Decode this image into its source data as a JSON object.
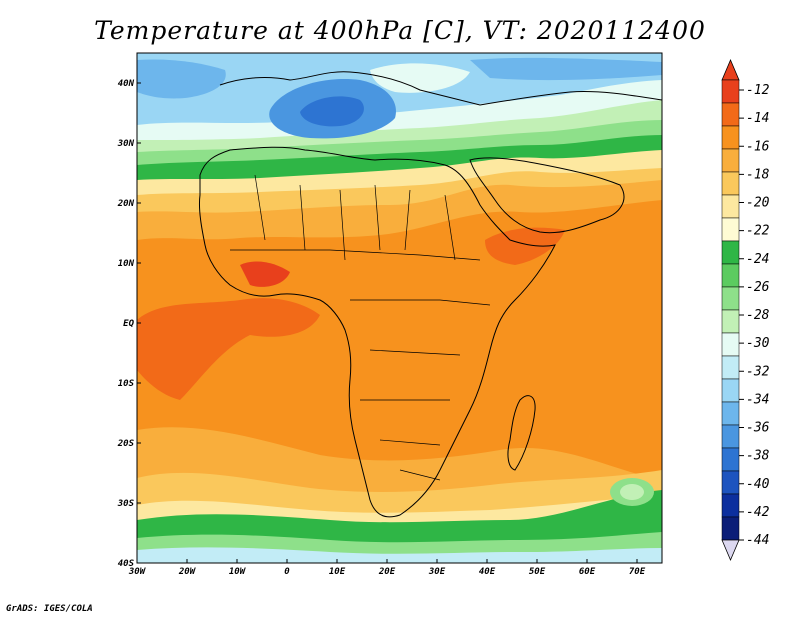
{
  "title": "Temperature at 400hPa [C], VT: 2020112400",
  "credit": "GrADS: IGES/COLA",
  "map": {
    "lon_labels": [
      "30W",
      "20W",
      "10W",
      "0",
      "10E",
      "20E",
      "30E",
      "40E",
      "50E",
      "60E",
      "70E"
    ],
    "lat_labels": [
      "40N",
      "30N",
      "20N",
      "10N",
      "EQ",
      "10S",
      "20S",
      "30S",
      "40S"
    ]
  },
  "colorbar": {
    "labels": [
      "-12",
      "-14",
      "-16",
      "-18",
      "-20",
      "-22",
      "-24",
      "-26",
      "-28",
      "-30",
      "-32",
      "-34",
      "-36",
      "-38",
      "-40",
      "-42",
      "-44"
    ],
    "colors": [
      "#e8401c",
      "#f26a18",
      "#f7921e",
      "#f9ae3c",
      "#fac85c",
      "#fde8a0",
      "#fefbd4",
      "#2fb646",
      "#5ccb60",
      "#8ee08a",
      "#c2f0b6",
      "#e6fbf4",
      "#c2ecf6",
      "#9ad6f4",
      "#6db6ec",
      "#4a96e0",
      "#2d74d2",
      "#1d54bf",
      "#0c2f9e",
      "#0b1e78"
    ]
  }
}
